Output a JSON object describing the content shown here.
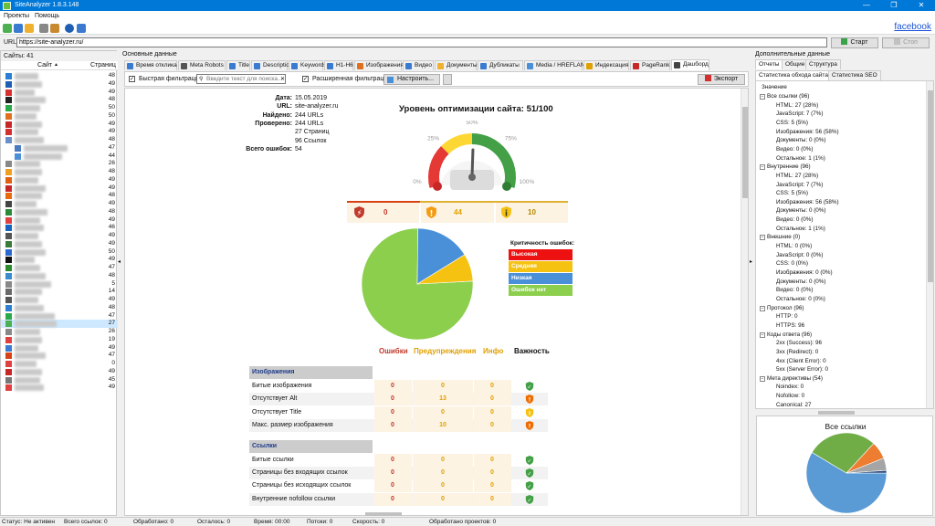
{
  "window": {
    "title": "SiteAnalyzer 1.8.3.148",
    "minimize": "—",
    "maximize": "❐",
    "close": "✕"
  },
  "menu": [
    "Проекты",
    "Помощь"
  ],
  "toolbar": {
    "facebook": "facebook"
  },
  "url": {
    "label": "URL:",
    "value": "https://site-analyzer.ru/",
    "start": "Старт",
    "stop": "Стоп"
  },
  "sites": {
    "header": "Сайты: 41",
    "col_site": "Сайт",
    "col_pages": "Страниц",
    "rows": [
      {
        "count": "48",
        "color": "#2a7fd4"
      },
      {
        "count": "49",
        "color": "#1e5fb4"
      },
      {
        "count": "49",
        "color": "#d83030"
      },
      {
        "count": "48",
        "color": "#222"
      },
      {
        "count": "50",
        "color": "#2aa84a"
      },
      {
        "count": "50",
        "color": "#e07020"
      },
      {
        "count": "49",
        "color": "#c62828"
      },
      {
        "count": "49",
        "color": "#d32f2f"
      },
      {
        "count": "48",
        "color": "#6a8fc8"
      },
      {
        "count": "47",
        "color": "#4a7ac0"
      },
      {
        "count": "44",
        "color": "#4a90d9"
      },
      {
        "count": "26",
        "color": "#888"
      },
      {
        "count": "48",
        "color": "#f0a020"
      },
      {
        "count": "49",
        "color": "#e06010"
      },
      {
        "count": "49",
        "color": "#c62828"
      },
      {
        "count": "48",
        "color": "#e86a10"
      },
      {
        "count": "49",
        "color": "#444"
      },
      {
        "count": "48",
        "color": "#2a8a3a"
      },
      {
        "count": "49",
        "color": "#e04040"
      },
      {
        "count": "46",
        "color": "#1565c0"
      },
      {
        "count": "49",
        "color": "#555"
      },
      {
        "count": "49",
        "color": "#3a7a3a"
      },
      {
        "count": "50",
        "color": "#2a6ad0"
      },
      {
        "count": "49",
        "color": "#111"
      },
      {
        "count": "47",
        "color": "#2e8a2e"
      },
      {
        "count": "48",
        "color": "#3a8ad0"
      },
      {
        "count": "5",
        "color": "#888"
      },
      {
        "count": "14",
        "color": "#6a6a6a"
      },
      {
        "count": "49",
        "color": "#555"
      },
      {
        "count": "48",
        "color": "#2d7fd0"
      },
      {
        "count": "47",
        "color": "#2aa84a"
      },
      {
        "count": "27",
        "color": "#4caf50"
      },
      {
        "count": "26",
        "color": "#888"
      },
      {
        "count": "19",
        "color": "#e04040"
      },
      {
        "count": "49",
        "color": "#3a7ad0"
      },
      {
        "count": "47",
        "color": "#d84315"
      },
      {
        "count": "0",
        "color": "#e04040"
      },
      {
        "count": "49",
        "color": "#c62828"
      },
      {
        "count": "45",
        "color": "#777"
      },
      {
        "count": "49",
        "color": "#e04040"
      }
    ]
  },
  "center": {
    "label": "Основные данные",
    "tabs": [
      "Время отклика",
      "Meta Robots",
      "Title",
      "Description",
      "Keywords",
      "H1-H6",
      "Изображения",
      "Видео",
      "Документы",
      "Дубликаты",
      "Media / HREFLANG",
      "Индексация",
      "PageRank",
      "Дашборд"
    ],
    "filter": {
      "quick": "Быстрая фильтрация:",
      "placeholder": "Введите текст для поиска...",
      "advanced": "Расширенная фильтрация:",
      "configure": "Настроить...",
      "export": "Экспорт"
    }
  },
  "dashboard": {
    "info": [
      {
        "label": "Дата:",
        "value": "15.05.2019"
      },
      {
        "label": "URL:",
        "value": "site-analyzer.ru"
      },
      {
        "label": "Найдено:",
        "value": "244 URLs"
      },
      {
        "label": "Проверено:",
        "value": "244 URLs"
      },
      {
        "label": "",
        "value": "27  Страниц"
      },
      {
        "label": "",
        "value": "96  Ссылок"
      },
      {
        "label": "Всего ошибок:",
        "value": "54"
      }
    ],
    "title": "Уровень оптимизации сайта: 51/100",
    "gauge": {
      "level": 51,
      "labels": [
        "0%",
        "25%",
        "50%",
        "75%",
        "100%"
      ]
    },
    "severity": {
      "errors": "0",
      "warnings": "44",
      "info": "10"
    },
    "legend": {
      "title": "Критичность ошибок:",
      "items": [
        {
          "label": "Высокая",
          "color": "#ee1111"
        },
        {
          "label": "Средняя",
          "color": "#f5c211"
        },
        {
          "label": "Низкая",
          "color": "#4a90d9"
        },
        {
          "label": "Ошибок нет",
          "color": "#8ccf4d"
        }
      ]
    },
    "columns": {
      "errors": "Ошибки",
      "warnings": "Предупреждения",
      "info": "Инфо",
      "importance": "Важность"
    },
    "sections": [
      {
        "title": "Изображения",
        "rows": [
          {
            "label": "Битые изображения",
            "e": "0",
            "w": "0",
            "i": "0",
            "imp": "green"
          },
          {
            "label": "Отсутствует Alt",
            "e": "0",
            "w": "13",
            "i": "0",
            "imp": "orange"
          },
          {
            "label": "Отсутствует Title",
            "e": "0",
            "w": "0",
            "i": "0",
            "imp": "yellow"
          },
          {
            "label": "Макс. размер изображения",
            "e": "0",
            "w": "10",
            "i": "0",
            "imp": "orange"
          }
        ]
      },
      {
        "title": "Ссылки",
        "rows": [
          {
            "label": "Битые ссылки",
            "e": "0",
            "w": "0",
            "i": "0",
            "imp": "green"
          },
          {
            "label": "Страницы без входящих ссылок",
            "e": "0",
            "w": "0",
            "i": "0",
            "imp": "green"
          },
          {
            "label": "Страницы без исходящих ссылок",
            "e": "0",
            "w": "0",
            "i": "0",
            "imp": "green"
          },
          {
            "label": "Внутренние nofollow ссылки",
            "e": "0",
            "w": "0",
            "i": "0",
            "imp": "green"
          }
        ]
      }
    ]
  },
  "chart_data": [
    {
      "type": "pie",
      "title": "",
      "labels": [
        "Ошибок нет",
        "Низкая",
        "Средняя",
        "Высокая"
      ],
      "values": [
        76,
        16,
        8,
        0
      ],
      "colors": [
        "#8ccf4d",
        "#4a90d9",
        "#f5c211",
        "#ee1111"
      ]
    },
    {
      "type": "pie",
      "title": "Все ссылки",
      "labels": [
        "Изображения",
        "HTML",
        "JavaScript",
        "CSS",
        "Остальное"
      ],
      "values": [
        58,
        28,
        7,
        5,
        1
      ],
      "colors": [
        "#5b9bd5",
        "#70ad47",
        "#ed7d31",
        "#a5a5a5",
        "#264478"
      ]
    }
  ],
  "right": {
    "label": "Дополнительные данные",
    "tabs": [
      "Отчеты",
      "Общие",
      "Структура"
    ],
    "subtabs": [
      "Статистика обхода сайта",
      "Статистика SEO"
    ],
    "tree_header": "Значение",
    "tree": [
      {
        "lvl": 0,
        "text": "Все ссылки (96)"
      },
      {
        "lvl": 1,
        "text": "HTML: 27 (28%)"
      },
      {
        "lvl": 1,
        "text": "JavaScript: 7 (7%)"
      },
      {
        "lvl": 1,
        "text": "CSS: 5 (5%)"
      },
      {
        "lvl": 1,
        "text": "Изображения: 56 (58%)"
      },
      {
        "lvl": 1,
        "text": "Документы: 0 (0%)"
      },
      {
        "lvl": 1,
        "text": "Видео: 0 (0%)"
      },
      {
        "lvl": 1,
        "text": "Остальное: 1 (1%)"
      },
      {
        "lvl": 0,
        "text": "Внутренние (96)"
      },
      {
        "lvl": 1,
        "text": "HTML: 27 (28%)"
      },
      {
        "lvl": 1,
        "text": "JavaScript: 7 (7%)"
      },
      {
        "lvl": 1,
        "text": "CSS: 5 (5%)"
      },
      {
        "lvl": 1,
        "text": "Изображения: 56 (58%)"
      },
      {
        "lvl": 1,
        "text": "Документы: 0 (0%)"
      },
      {
        "lvl": 1,
        "text": "Видео: 0 (0%)"
      },
      {
        "lvl": 1,
        "text": "Остальное: 1 (1%)"
      },
      {
        "lvl": 0,
        "text": "Внешние (0)"
      },
      {
        "lvl": 1,
        "text": "HTML: 0 (0%)"
      },
      {
        "lvl": 1,
        "text": "JavaScript: 0 (0%)"
      },
      {
        "lvl": 1,
        "text": "CSS: 0 (0%)"
      },
      {
        "lvl": 1,
        "text": "Изображения: 0 (0%)"
      },
      {
        "lvl": 1,
        "text": "Документы: 0 (0%)"
      },
      {
        "lvl": 1,
        "text": "Видео: 0 (0%)"
      },
      {
        "lvl": 1,
        "text": "Остальное: 0 (0%)"
      },
      {
        "lvl": 0,
        "text": "Протокол (96)"
      },
      {
        "lvl": 1,
        "text": "HTTP: 0"
      },
      {
        "lvl": 1,
        "text": "HTTPS: 96"
      },
      {
        "lvl": 0,
        "text": "Коды ответа (96)"
      },
      {
        "lvl": 1,
        "text": "2xx (Success): 96"
      },
      {
        "lvl": 1,
        "text": "3xx (Redirect): 0"
      },
      {
        "lvl": 1,
        "text": "4xx (Client Error): 0"
      },
      {
        "lvl": 1,
        "text": "5xx (Server Error): 0"
      },
      {
        "lvl": 0,
        "text": "Мета директивы (54)"
      },
      {
        "lvl": 1,
        "text": "Noindex: 0"
      },
      {
        "lvl": 1,
        "text": "Nofollow: 0"
      },
      {
        "lvl": 1,
        "text": "Canonical: 27"
      }
    ]
  },
  "status": [
    "Статус: Не активен",
    "Всего ссылок: 0",
    "Обработано: 0",
    "Осталось: 0",
    "Время: 00:00",
    "Потоки: 0",
    "Скорость: 0",
    "Обработано проектов: 0"
  ]
}
